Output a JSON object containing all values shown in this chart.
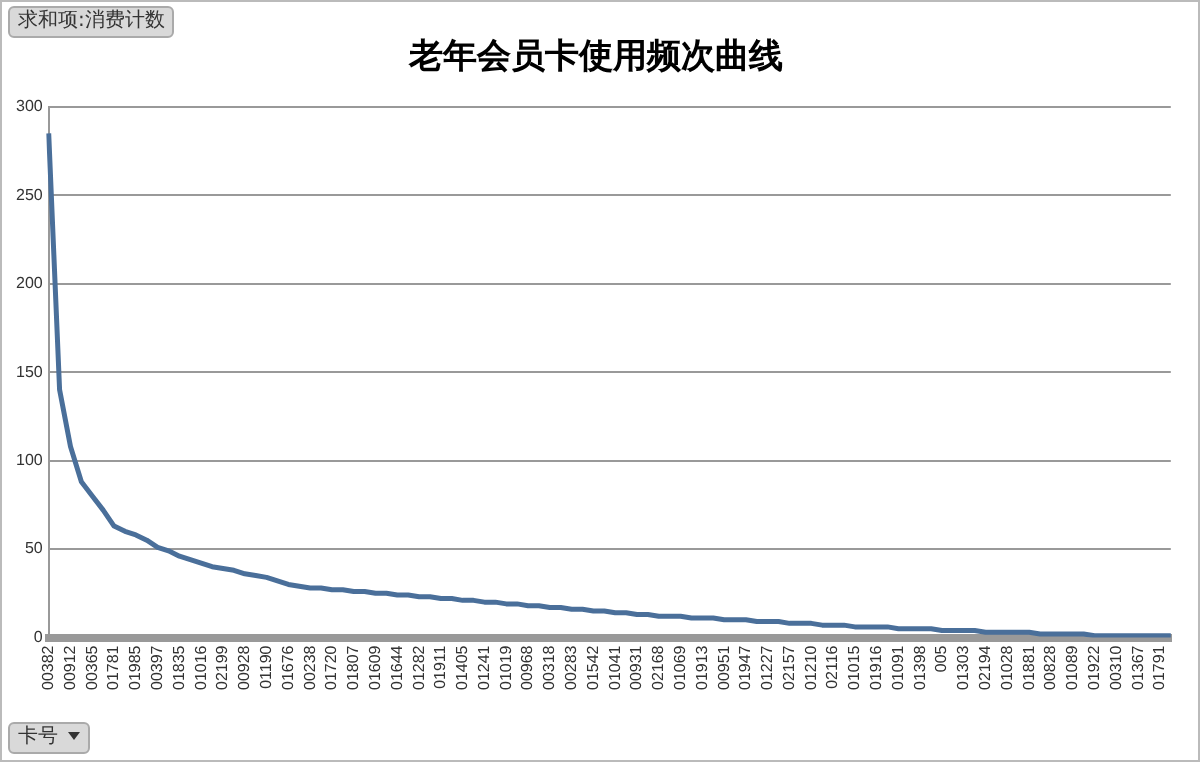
{
  "chart_data": {
    "type": "line",
    "title": "老年会员卡使用频次曲线",
    "categories": [
      "00382",
      null,
      "00912",
      null,
      "00365",
      null,
      "01781",
      null,
      "01985",
      null,
      "00397",
      null,
      "01835",
      null,
      "01016",
      null,
      "02199",
      null,
      "00928",
      null,
      "01190",
      null,
      "01676",
      null,
      "00238",
      null,
      "01720",
      null,
      "01807",
      null,
      "01609",
      null,
      "01644",
      null,
      "01282",
      null,
      "01911",
      null,
      "01405",
      null,
      "01241",
      null,
      "01019",
      null,
      "00968",
      null,
      "00318",
      null,
      "00283",
      null,
      "01542",
      null,
      "01041",
      null,
      "00931",
      null,
      "02168",
      null,
      "01069",
      null,
      "01913",
      null,
      "00951",
      null,
      "01947",
      null,
      "01227",
      null,
      "02157",
      null,
      "01210",
      null,
      "02116",
      null,
      "01015",
      null,
      "01916",
      null,
      "01091",
      null,
      "01398",
      null,
      "005",
      null,
      "01303",
      null,
      "02194",
      null,
      "01028",
      null,
      "01881",
      null,
      "00828",
      null,
      "01089",
      null,
      "01922",
      null,
      "00310",
      null,
      "01367",
      null,
      "01791",
      null
    ],
    "series": [
      {
        "color": "#4a6f9a",
        "values": [
          285,
          140,
          108,
          88,
          80,
          72,
          63,
          60,
          58,
          55,
          51,
          49,
          46,
          44,
          42,
          40,
          39,
          38,
          36,
          35,
          34,
          32,
          30,
          29,
          28,
          28,
          27,
          27,
          26,
          26,
          25,
          25,
          24,
          24,
          23,
          23,
          22,
          22,
          21,
          21,
          20,
          20,
          19,
          19,
          18,
          18,
          17,
          17,
          16,
          16,
          15,
          15,
          14,
          14,
          13,
          13,
          12,
          12,
          12,
          11,
          11,
          11,
          10,
          10,
          10,
          9,
          9,
          9,
          8,
          8,
          8,
          7,
          7,
          7,
          6,
          6,
          6,
          6,
          5,
          5,
          5,
          5,
          4,
          4,
          4,
          4,
          3,
          3,
          3,
          3,
          3,
          2,
          2,
          2,
          2,
          2,
          1,
          1,
          1,
          1,
          1,
          1,
          1,
          1
        ]
      }
    ],
    "ylim": [
      0,
      300
    ],
    "yticks": [
      0,
      50,
      100,
      150,
      200,
      250,
      300
    ],
    "grid": "y",
    "legend": false,
    "marker": "none",
    "line_style": "solid",
    "annotations": [
      "求和项:消费计数",
      "卡号"
    ]
  }
}
